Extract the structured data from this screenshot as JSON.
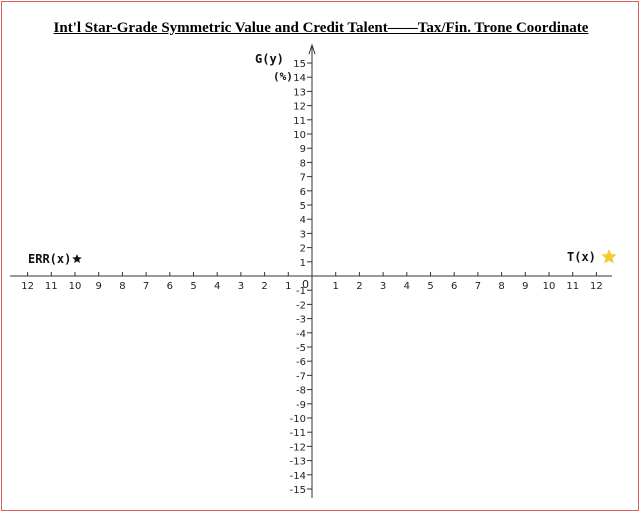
{
  "title": "Int'l Star-Grade Symmetric Value and Credit Talent——Tax/Fin. Trone Coordinate",
  "y_axis": {
    "label": "G(y)",
    "unit": "(%)"
  },
  "x_axis_positive": {
    "label": "T(x)",
    "marker": "star-yellow"
  },
  "x_axis_negative": {
    "label": "ERR(x)",
    "marker": "star-black"
  },
  "origin_label": "0",
  "chart_data": {
    "type": "coordinate-plane",
    "title": "Int'l Star-Grade Symmetric Value and Credit Talent——Tax/Fin. Trone Coordinate",
    "x_ticks_positive": [
      "1",
      "2",
      "3",
      "4",
      "5",
      "6",
      "7",
      "8",
      "9",
      "10",
      "11",
      "12"
    ],
    "x_ticks_negative": [
      "1",
      "2",
      "3",
      "4",
      "5",
      "6",
      "7",
      "8",
      "9",
      "10",
      "11",
      "12"
    ],
    "y_ticks_positive": [
      "1",
      "2",
      "3",
      "4",
      "5",
      "6",
      "7",
      "8",
      "9",
      "10",
      "11",
      "12",
      "13",
      "14",
      "15"
    ],
    "y_ticks_negative": [
      "-1",
      "-2",
      "-3",
      "-4",
      "-5",
      "-6",
      "-7",
      "-8",
      "-9",
      "-10",
      "-11",
      "-12",
      "-13",
      "-14",
      "-15"
    ],
    "xlim": [
      -12,
      12
    ],
    "ylim": [
      -15,
      15
    ],
    "grid": false
  },
  "colors": {
    "axis": "#333333",
    "star_positive": "#f0cc30",
    "star_negative": "#111111",
    "frame": "#e06060"
  }
}
